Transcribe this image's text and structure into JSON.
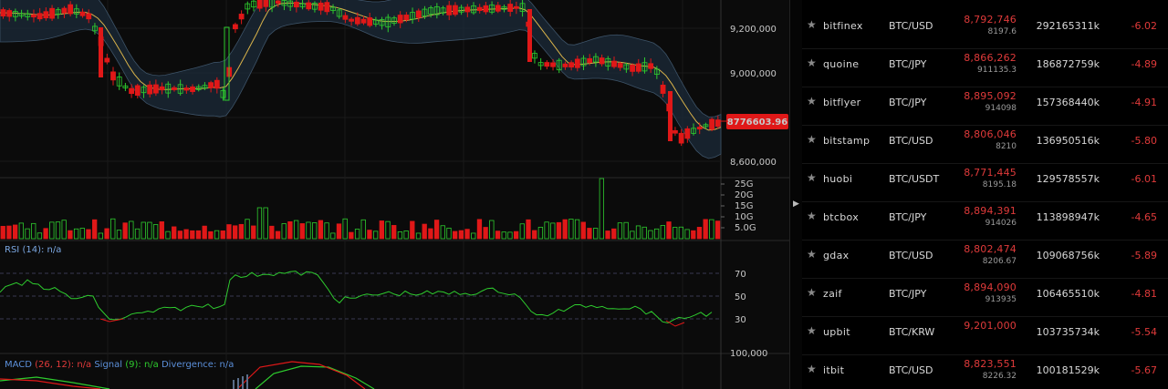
{
  "price_axis": {
    "labels": [
      "9,200,000",
      "9,000,000",
      "8,600,000"
    ],
    "current_price": "8776603.96",
    "current_price_color": "#e01818"
  },
  "volume_axis": {
    "labels": [
      "25G",
      "20G",
      "15G",
      "10G",
      "5.0G"
    ]
  },
  "rsi": {
    "title": "RSI",
    "period": "(14)",
    "value": ": n/a",
    "levels": [
      "70",
      "50",
      "30"
    ]
  },
  "macd": {
    "title": "MACD",
    "params": "(26, 12)",
    "value": ": n/a",
    "signal_label": "Signal",
    "signal_params": "(9)",
    "signal_value": ": n/a",
    "divergence_label": "Divergence",
    "divergence_value": ": n/a",
    "axis_label": "100,000"
  },
  "colors": {
    "up": "#2ecc2e",
    "down": "#e01818",
    "ma": "#d9b34a",
    "band": "#1c2b3a",
    "rsi": "#2ecc2e",
    "macd_label": "#5b8fd9"
  },
  "exchanges": [
    {
      "name": "bitfinex",
      "pair": "BTC/USD",
      "price": "8,792,746",
      "sub": "8197.6",
      "volume": "292165311k",
      "change": "-6.02"
    },
    {
      "name": "quoine",
      "pair": "BTC/JPY",
      "price": "8,866,262",
      "sub": "911135.3",
      "volume": "186872759k",
      "change": "-4.89"
    },
    {
      "name": "bitflyer",
      "pair": "BTC/JPY",
      "price": "8,895,092",
      "sub": "914098",
      "volume": "157368440k",
      "change": "-4.91"
    },
    {
      "name": "bitstamp",
      "pair": "BTC/USD",
      "price": "8,806,046",
      "sub": "8210",
      "volume": "136950516k",
      "change": "-5.80"
    },
    {
      "name": "huobi",
      "pair": "BTC/USDT",
      "price": "8,771,445",
      "sub": "8195.18",
      "volume": "129578557k",
      "change": "-6.01"
    },
    {
      "name": "btcbox",
      "pair": "BTC/JPY",
      "price": "8,894,391",
      "sub": "914026",
      "volume": "113898947k",
      "change": "-4.65"
    },
    {
      "name": "gdax",
      "pair": "BTC/USD",
      "price": "8,802,474",
      "sub": "8206.67",
      "volume": "109068756k",
      "change": "-5.89"
    },
    {
      "name": "zaif",
      "pair": "BTC/JPY",
      "price": "8,894,090",
      "sub": "913935",
      "volume": "106465510k",
      "change": "-4.81"
    },
    {
      "name": "upbit",
      "pair": "BTC/KRW",
      "price": "9,201,000",
      "sub": "",
      "volume": "103735734k",
      "change": "-5.54"
    },
    {
      "name": "itbit",
      "pair": "BTC/USD",
      "price": "8,823,551",
      "sub": "8226.32",
      "volume": "100181529k",
      "change": "-5.67"
    }
  ]
}
